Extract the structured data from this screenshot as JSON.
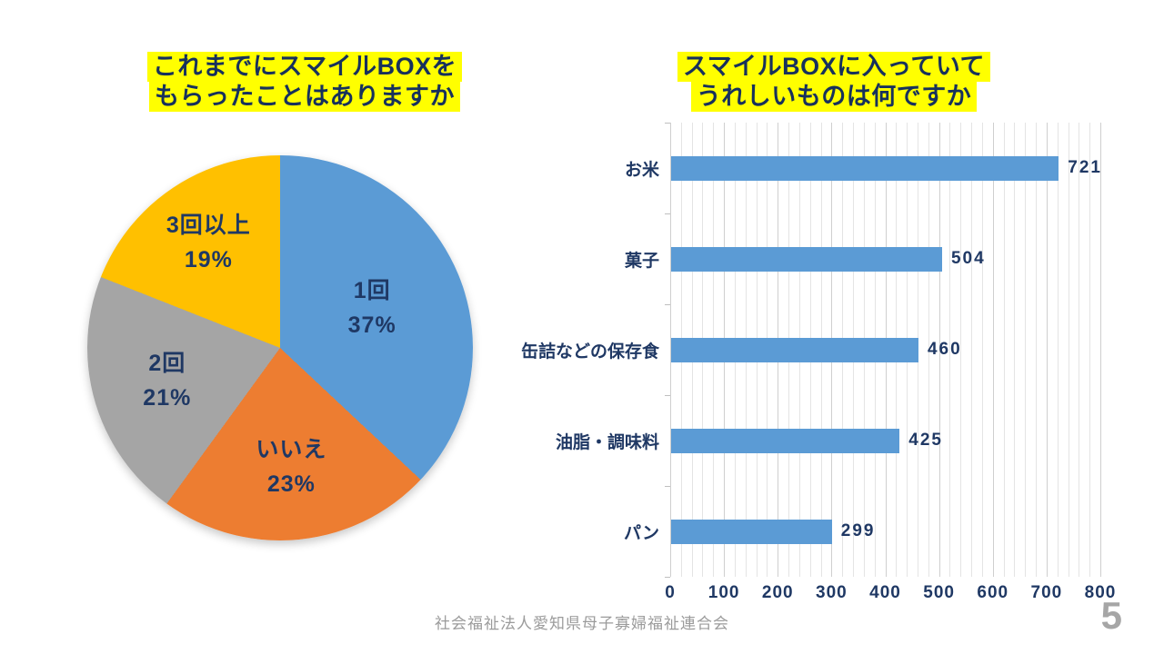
{
  "slide": {
    "footer": "社会福祉法人愛知県母子寡婦福祉連合会",
    "page_number": "5"
  },
  "colors": {
    "accent_blue": "#5B9BD5",
    "accent_orange": "#ED7D31",
    "accent_gray": "#A5A5A5",
    "accent_yellow": "#FFC000",
    "text_navy": "#1F3864",
    "title_highlight": "#FFFF00",
    "gridline": "#E4E4E4",
    "footer_gray": "#9B9B9B"
  },
  "chart_data": [
    {
      "type": "pie",
      "title": "これまでにスマイルBOXをもらったことはありますか",
      "title_lines": [
        "これまでにスマイルBOXを",
        "もらったことはありますか"
      ],
      "unit": "%",
      "start_angle_deg": 0,
      "direction": "clockwise",
      "label_color": "#1F3864",
      "slices": [
        {
          "label": "1回",
          "value": 37,
          "color": "#5B9BD5"
        },
        {
          "label": "いいえ",
          "value": 23,
          "color": "#ED7D31"
        },
        {
          "label": "2回",
          "value": 21,
          "color": "#A5A5A5"
        },
        {
          "label": "3回以上",
          "value": 19,
          "color": "#FFC000"
        }
      ]
    },
    {
      "type": "bar",
      "orientation": "horizontal",
      "title": "スマイルBOXに入っていてうれしいものは何ですか",
      "title_lines": [
        "スマイルBOXに入っていて",
        "うれしいものは何ですか"
      ],
      "categories": [
        "お米",
        "菓子",
        "缶詰などの保存食",
        "油脂・調味料",
        "パン"
      ],
      "values": [
        721,
        504,
        460,
        425,
        299
      ],
      "bar_color": "#5B9BD5",
      "value_label_color": "#1F3864",
      "xlim": [
        0,
        800
      ],
      "x_major_tick_interval": 100,
      "x_minor_gridline_interval": 20,
      "x_tick_labels": [
        "0",
        "100",
        "200",
        "300",
        "400",
        "500",
        "600",
        "700",
        "800"
      ],
      "grid": true,
      "legend": false
    }
  ]
}
